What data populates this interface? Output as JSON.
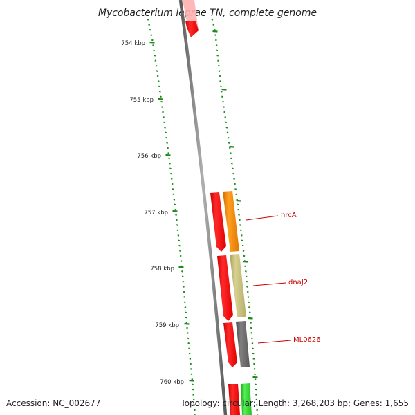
{
  "title": "Mycobacterium leprae TN, complete genome",
  "ticks": [
    "754 kbp",
    "755 kbp",
    "756 kbp",
    "757 kbp",
    "758 kbp",
    "759 kbp",
    "760 kbp"
  ],
  "genes": [
    {
      "label": "hrcA",
      "color": "#ff8a00"
    },
    {
      "label": "dnaJ2",
      "color": "#bdb76b"
    },
    {
      "label": "ML0626",
      "color": "#666666"
    }
  ],
  "colors": {
    "cds_forward": "#ff0000",
    "cds_light": "#ff9a9a",
    "gc_skew": "#1a8a1a",
    "backbone": "#777777",
    "green_feature": "#22cc22"
  },
  "footer": {
    "accession": "Accession: NC_002677",
    "topology": "Topology: circular; Length: 3,268,203 bp; Genes: 1,655"
  }
}
